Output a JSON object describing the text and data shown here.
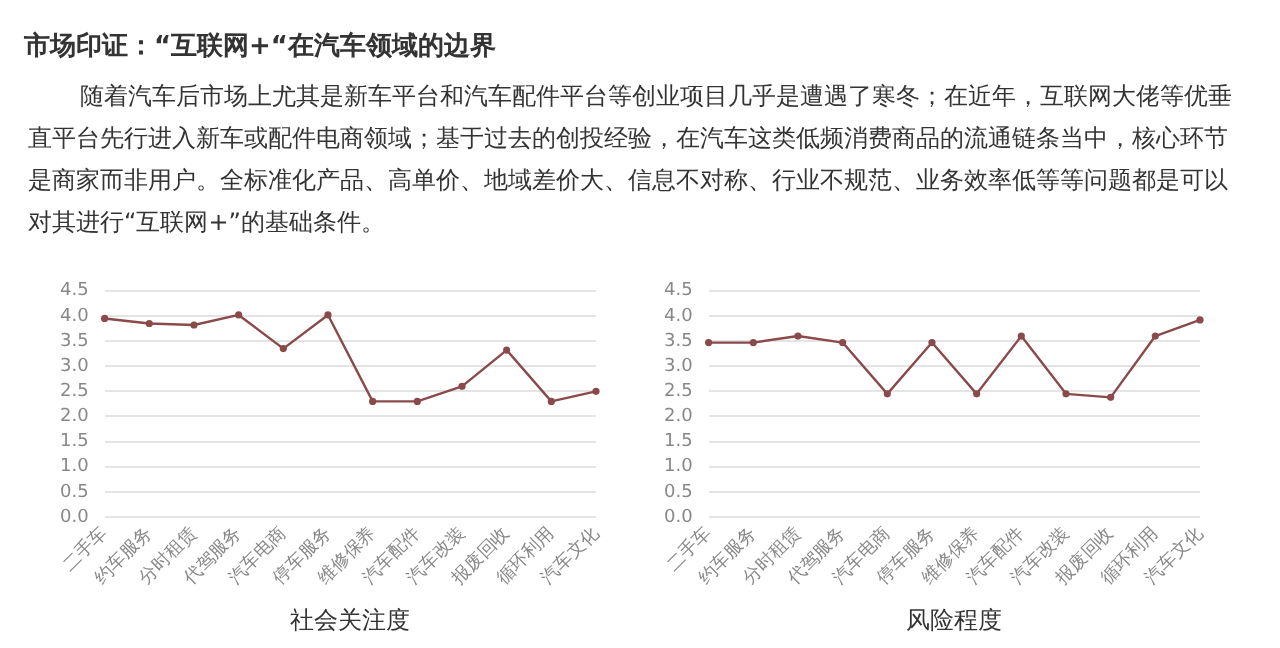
{
  "chart_data": [
    {
      "type": "other",
      "title": "市场印证：“互联网+“在汽车领域的边界",
      "annotations": [
        "随着汽车后市场上尤其是新车平台和汽车配件平台等创业项目几乎是遭遇了寒冬；在近年，互联网大佬等优垂直平台先行进入新车或配件电商领域；基于过去的创投经验，在汽车这类低频消费商品的流通链条当中，核心环节是商家而非用户。全标准化产品、高单价、地域差价大、信息不对称、行业不规范、业务效率低等等问题都是可以对其进行“互联网+”的基础条件。"
      ]
    },
    {
      "type": "line",
      "xlabel": "社会关注度",
      "categories": [
        "二手车",
        "约车服务",
        "分时租赁",
        "代驾服务",
        "汽车电商",
        "停车服务",
        "维修保养",
        "汽车配件",
        "汽车改装",
        "报废回收",
        "循环利用",
        "汽车文化"
      ],
      "series": [
        {
          "color": "#8b4a4a",
          "values": [
            3.95,
            3.85,
            3.82,
            4.02,
            3.35,
            4.02,
            2.3,
            2.3,
            2.6,
            3.32,
            2.3,
            2.5
          ]
        }
      ],
      "ylim": [
        0,
        4.5
      ],
      "yticks": [
        {
          "value": 0,
          "label": "0.0"
        },
        {
          "value": 0.5,
          "label": "0.5"
        },
        {
          "value": 1,
          "label": "1.0"
        },
        {
          "value": 1.5,
          "label": "1.5"
        },
        {
          "value": 2,
          "label": "2.0"
        },
        {
          "value": 2.5,
          "label": "2.5"
        },
        {
          "value": 3,
          "label": "3.0"
        },
        {
          "value": 3.5,
          "label": "3.5"
        },
        {
          "value": 4,
          "label": "4.0"
        },
        {
          "value": 4.5,
          "label": "4.5"
        }
      ],
      "grid": "y",
      "legend": false,
      "marker": "circle",
      "line_style": "solid"
    },
    {
      "type": "line",
      "xlabel": "风险程度",
      "categories": [
        "二手车",
        "约车服务",
        "分时租赁",
        "代驾服务",
        "汽车电商",
        "停车服务",
        "维修保养",
        "汽车配件",
        "汽车改装",
        "报废回收",
        "循环利用",
        "汽车文化"
      ],
      "series": [
        {
          "color": "#8b4a4a",
          "values": [
            3.47,
            3.47,
            3.6,
            3.47,
            2.45,
            3.47,
            2.45,
            3.6,
            2.45,
            2.38,
            3.6,
            3.92
          ]
        }
      ],
      "ylim": [
        0,
        4.5
      ],
      "yticks": [
        {
          "value": 0,
          "label": "0.0"
        },
        {
          "value": 0.5,
          "label": "0.5"
        },
        {
          "value": 1,
          "label": "1.0"
        },
        {
          "value": 1.5,
          "label": "1.5"
        },
        {
          "value": 2,
          "label": "2.0"
        },
        {
          "value": 2.5,
          "label": "2.5"
        },
        {
          "value": 3,
          "label": "3.0"
        },
        {
          "value": 3.5,
          "label": "3.5"
        },
        {
          "value": 4,
          "label": "4.0"
        },
        {
          "value": 4.5,
          "label": "4.5"
        }
      ],
      "grid": "y",
      "legend": false,
      "marker": "circle",
      "line_style": "solid"
    }
  ]
}
